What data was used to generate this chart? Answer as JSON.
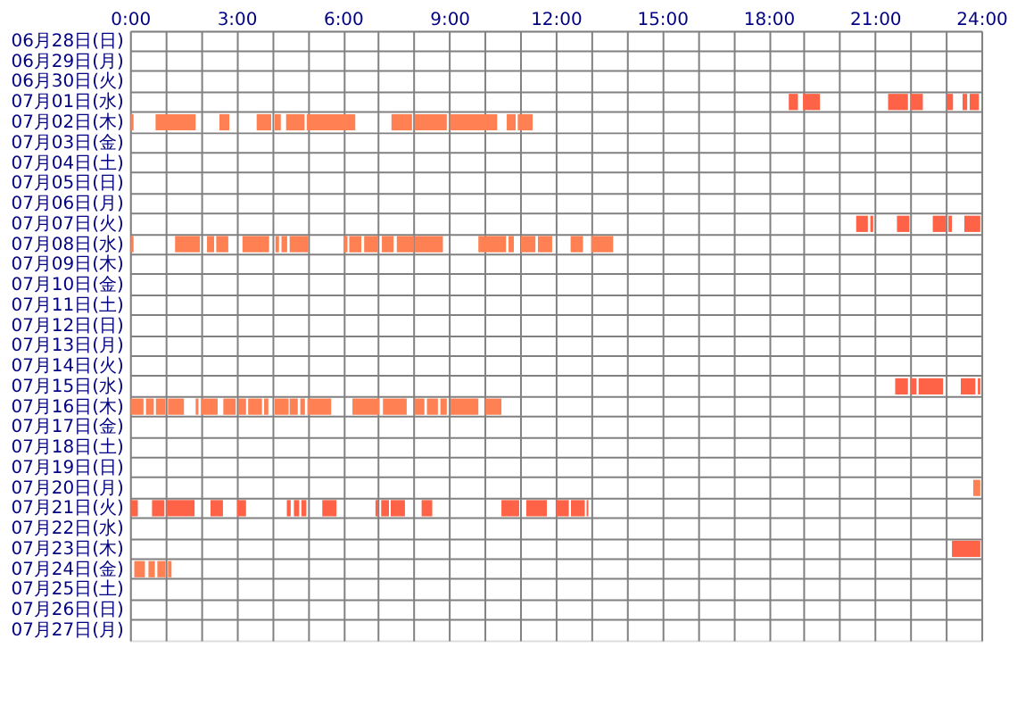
{
  "chart_data": {
    "type": "bar",
    "orientation": "horizontal",
    "grid": true,
    "categories": [
      "06月28日(日)",
      "06月29日(月)",
      "06月30日(火)",
      "07月01日(水)",
      "07月02日(木)",
      "07月03日(金)",
      "07月04日(土)",
      "07月05日(日)",
      "07月06日(月)",
      "07月07日(火)",
      "07月08日(水)",
      "07月09日(木)",
      "07月10日(金)",
      "07月11日(土)",
      "07月12日(日)",
      "07月13日(月)",
      "07月14日(火)",
      "07月15日(水)",
      "07月16日(木)",
      "07月17日(金)",
      "07月18日(土)",
      "07月19日(日)",
      "07月20日(月)",
      "07月21日(火)",
      "07月22日(水)",
      "07月23日(木)",
      "07月24日(金)",
      "07月25日(土)",
      "07月26日(日)",
      "07月27日(月)"
    ],
    "xlim": [
      0,
      24
    ],
    "xticks": [
      {
        "value": 0,
        "label": "0:00"
      },
      {
        "value": 1,
        "label": null
      },
      {
        "value": 2,
        "label": null
      },
      {
        "value": 3,
        "label": "3:00"
      },
      {
        "value": 4,
        "label": null
      },
      {
        "value": 5,
        "label": null
      },
      {
        "value": 6,
        "label": "6:00"
      },
      {
        "value": 7,
        "label": null
      },
      {
        "value": 8,
        "label": null
      },
      {
        "value": 9,
        "label": "9:00"
      },
      {
        "value": 10,
        "label": null
      },
      {
        "value": 11,
        "label": null
      },
      {
        "value": 12,
        "label": "12:00"
      },
      {
        "value": 13,
        "label": null
      },
      {
        "value": 14,
        "label": null
      },
      {
        "value": 15,
        "label": "15:00"
      },
      {
        "value": 16,
        "label": null
      },
      {
        "value": 17,
        "label": null
      },
      {
        "value": 18,
        "label": "18:00"
      },
      {
        "value": 19,
        "label": null
      },
      {
        "value": 20,
        "label": null
      },
      {
        "value": 21,
        "label": "21:00"
      },
      {
        "value": 22,
        "label": null
      },
      {
        "value": 23,
        "label": null
      },
      {
        "value": 24,
        "label": "24:00"
      }
    ],
    "series": [
      {
        "base": [
          null,
          null,
          null,
          18.57,
          0.02,
          null,
          null,
          null,
          null,
          20.47,
          0.02,
          null,
          null,
          null,
          null,
          null,
          null,
          21.57,
          0.02,
          null,
          null,
          null,
          23.77,
          0.02,
          null,
          23.17,
          0.12,
          null,
          null,
          null
        ],
        "values": [
          null,
          null,
          null,
          0.26,
          0.08,
          null,
          null,
          null,
          null,
          0.33,
          0.08,
          null,
          null,
          null,
          null,
          null,
          null,
          0.36,
          0.36,
          null,
          null,
          null,
          0.2,
          0.2,
          null,
          0.8,
          0.3,
          null,
          null,
          null
        ],
        "colors": [
          null,
          null,
          null,
          "#ff6347",
          "#ff8052",
          null,
          null,
          null,
          null,
          "#ff6347",
          "#ff8052",
          null,
          null,
          null,
          null,
          null,
          null,
          "#ff6347",
          "#ff8052",
          null,
          null,
          null,
          "#ff8052",
          "#ff6347",
          null,
          "#ff6347",
          "#ff8052",
          null,
          null,
          null
        ]
      },
      {
        "base": [
          null,
          null,
          null,
          18.97,
          0.72,
          null,
          null,
          null,
          null,
          20.87,
          1.27,
          null,
          null,
          null,
          null,
          null,
          null,
          22.0,
          0.45,
          null,
          null,
          null,
          null,
          0.62,
          null,
          null,
          0.52,
          null,
          null,
          null
        ],
        "values": [
          null,
          null,
          null,
          0.48,
          1.13,
          null,
          null,
          null,
          null,
          0.08,
          0.7,
          null,
          null,
          null,
          null,
          null,
          null,
          0.17,
          0.22,
          null,
          null,
          null,
          null,
          0.35,
          null,
          null,
          0.18,
          null,
          null,
          null
        ],
        "colors": [
          null,
          null,
          null,
          "#ff6347",
          "#ff8052",
          null,
          null,
          null,
          null,
          "#ff6347",
          "#ff8052",
          null,
          null,
          null,
          null,
          null,
          null,
          "#ff6347",
          "#ff8052",
          null,
          null,
          null,
          null,
          "#ff6347",
          null,
          null,
          "#ff8052",
          null,
          null,
          null
        ]
      },
      {
        "base": [
          null,
          null,
          null,
          21.37,
          2.52,
          null,
          null,
          null,
          null,
          21.62,
          2.17,
          null,
          null,
          null,
          null,
          null,
          null,
          22.23,
          0.73,
          null,
          null,
          null,
          null,
          1.03,
          null,
          null,
          0.77,
          null,
          null,
          null
        ],
        "values": [
          null,
          null,
          null,
          0.56,
          0.28,
          null,
          null,
          null,
          null,
          0.35,
          0.2,
          null,
          null,
          null,
          null,
          null,
          null,
          0.69,
          0.27,
          null,
          null,
          null,
          null,
          0.79,
          null,
          null,
          0.23,
          null,
          null,
          null
        ],
        "colors": [
          null,
          null,
          null,
          "#ff6347",
          "#ff8052",
          null,
          null,
          null,
          null,
          "#ff6347",
          "#ff8052",
          null,
          null,
          null,
          null,
          null,
          null,
          "#ff6347",
          "#ff8052",
          null,
          null,
          null,
          null,
          "#ff6347",
          null,
          null,
          "#ff8052",
          null,
          null,
          null
        ]
      },
      {
        "base": [
          null,
          null,
          null,
          22.0,
          3.57,
          null,
          null,
          null,
          null,
          22.63,
          2.43,
          null,
          null,
          null,
          null,
          null,
          null,
          23.42,
          1.07,
          null,
          null,
          null,
          null,
          2.27,
          null,
          null,
          1.07,
          null,
          null,
          null
        ],
        "values": [
          null,
          null,
          null,
          0.35,
          0.41,
          null,
          null,
          null,
          null,
          0.37,
          0.34,
          null,
          null,
          null,
          null,
          null,
          null,
          0.41,
          0.45,
          null,
          null,
          null,
          null,
          0.35,
          null,
          null,
          0.1,
          null,
          null,
          null
        ],
        "colors": [
          null,
          null,
          null,
          "#ff6347",
          "#ff8052",
          null,
          null,
          null,
          null,
          "#ff6347",
          "#ff8052",
          null,
          null,
          null,
          null,
          null,
          null,
          "#ff6347",
          "#ff8052",
          null,
          null,
          null,
          null,
          "#ff6347",
          null,
          null,
          "#ff8052",
          null,
          null,
          null
        ]
      },
      {
        "base": [
          null,
          null,
          null,
          23.02,
          4.08,
          null,
          null,
          null,
          null,
          23.07,
          3.17,
          null,
          null,
          null,
          null,
          null,
          null,
          23.9,
          1.85,
          null,
          null,
          null,
          null,
          3.02,
          null,
          null,
          null,
          null,
          null,
          null
        ],
        "values": [
          null,
          null,
          null,
          0.18,
          0.17,
          null,
          null,
          null,
          null,
          0.1,
          0.75,
          null,
          null,
          null,
          null,
          null,
          null,
          0.07,
          0.08,
          null,
          null,
          null,
          null,
          0.25,
          null,
          null,
          null,
          null,
          null,
          null
        ],
        "colors": [
          null,
          null,
          null,
          "#ff6347",
          "#ff8052",
          null,
          null,
          null,
          null,
          "#ff6347",
          "#ff8052",
          null,
          null,
          null,
          null,
          null,
          null,
          "#ff6347",
          "#ff8052",
          null,
          null,
          null,
          null,
          "#ff6347",
          null,
          null,
          null,
          null,
          null,
          null
        ]
      },
      {
        "base": [
          null,
          null,
          null,
          23.47,
          4.4,
          null,
          null,
          null,
          null,
          23.52,
          4.1,
          null,
          null,
          null,
          null,
          null,
          null,
          null,
          2.0,
          null,
          null,
          null,
          null,
          4.42,
          null,
          null,
          null,
          null,
          null,
          null
        ],
        "values": [
          null,
          null,
          null,
          0.13,
          0.52,
          null,
          null,
          null,
          null,
          0.45,
          0.1,
          null,
          null,
          null,
          null,
          null,
          null,
          null,
          0.47,
          null,
          null,
          null,
          null,
          0.11,
          null,
          null,
          null,
          null,
          null,
          null
        ],
        "colors": [
          null,
          null,
          null,
          "#ff6347",
          "#ff8052",
          null,
          null,
          null,
          null,
          "#ff6347",
          "#ff8052",
          null,
          null,
          null,
          null,
          null,
          null,
          null,
          "#ff8052",
          null,
          null,
          null,
          null,
          "#ff6347",
          null,
          null,
          null,
          null,
          null,
          null
        ]
      },
      {
        "base": [
          null,
          null,
          null,
          23.67,
          4.98,
          null,
          null,
          null,
          null,
          null,
          4.27,
          null,
          null,
          null,
          null,
          null,
          null,
          null,
          2.63,
          null,
          null,
          null,
          null,
          4.62,
          null,
          null,
          null,
          null,
          null,
          null
        ],
        "values": [
          null,
          null,
          null,
          0.26,
          1.37,
          null,
          null,
          null,
          null,
          null,
          0.16,
          null,
          null,
          null,
          null,
          null,
          null,
          null,
          0.35,
          null,
          null,
          null,
          null,
          0.15,
          null,
          null,
          null,
          null,
          null,
          null
        ],
        "colors": [
          null,
          null,
          null,
          "#ff6347",
          "#ff8052",
          null,
          null,
          null,
          null,
          null,
          "#ff8052",
          null,
          null,
          null,
          null,
          null,
          null,
          null,
          "#ff8052",
          null,
          null,
          null,
          null,
          "#ff6347",
          null,
          null,
          null,
          null,
          null,
          null
        ]
      },
      {
        "base": [
          null,
          null,
          null,
          null,
          7.37,
          null,
          null,
          null,
          null,
          null,
          4.5,
          null,
          null,
          null,
          null,
          null,
          null,
          null,
          3.05,
          null,
          null,
          null,
          null,
          4.83,
          null,
          null,
          null,
          null,
          null,
          null
        ],
        "values": [
          null,
          null,
          null,
          null,
          0.58,
          null,
          null,
          null,
          null,
          null,
          0.52,
          null,
          null,
          null,
          null,
          null,
          null,
          null,
          0.22,
          null,
          null,
          null,
          null,
          0.14,
          null,
          null,
          null,
          null,
          null,
          null
        ],
        "colors": [
          null,
          null,
          null,
          null,
          "#ff8052",
          null,
          null,
          null,
          null,
          null,
          "#ff8052",
          null,
          null,
          null,
          null,
          null,
          null,
          null,
          "#ff8052",
          null,
          null,
          null,
          null,
          "#ff6347",
          null,
          null,
          null,
          null,
          null,
          null
        ]
      },
      {
        "base": [
          null,
          null,
          null,
          null,
          8.02,
          null,
          null,
          null,
          null,
          null,
          6.02,
          null,
          null,
          null,
          null,
          null,
          null,
          null,
          3.33,
          null,
          null,
          null,
          null,
          5.42,
          null,
          null,
          null,
          null,
          null,
          null
        ],
        "values": [
          null,
          null,
          null,
          null,
          0.91,
          null,
          null,
          null,
          null,
          null,
          0.11,
          null,
          null,
          null,
          null,
          null,
          null,
          null,
          0.39,
          null,
          null,
          null,
          null,
          0.4,
          null,
          null,
          null,
          null,
          null,
          null
        ],
        "colors": [
          null,
          null,
          null,
          null,
          "#ff8052",
          null,
          null,
          null,
          null,
          null,
          "#ff8052",
          null,
          null,
          null,
          null,
          null,
          null,
          null,
          "#ff8052",
          null,
          null,
          null,
          null,
          "#ff6347",
          null,
          null,
          null,
          null,
          null,
          null
        ]
      },
      {
        "base": [
          null,
          null,
          null,
          null,
          9.02,
          null,
          null,
          null,
          null,
          null,
          6.18,
          null,
          null,
          null,
          null,
          null,
          null,
          null,
          3.78,
          null,
          null,
          null,
          null,
          6.92,
          null,
          null,
          null,
          null,
          null,
          null
        ],
        "values": [
          null,
          null,
          null,
          null,
          1.33,
          null,
          null,
          null,
          null,
          null,
          0.34,
          null,
          null,
          null,
          null,
          null,
          null,
          null,
          0.12,
          null,
          null,
          null,
          null,
          0.08,
          null,
          null,
          null,
          null,
          null,
          null
        ],
        "colors": [
          null,
          null,
          null,
          null,
          "#ff8052",
          null,
          null,
          null,
          null,
          null,
          "#ff8052",
          null,
          null,
          null,
          null,
          null,
          null,
          null,
          "#ff8052",
          null,
          null,
          null,
          null,
          "#ff6347",
          null,
          null,
          null,
          null,
          null,
          null
        ]
      },
      {
        "base": [
          null,
          null,
          null,
          null,
          10.62,
          null,
          null,
          null,
          null,
          null,
          6.6,
          null,
          null,
          null,
          null,
          null,
          null,
          null,
          4.08,
          null,
          null,
          null,
          null,
          7.08,
          null,
          null,
          null,
          null,
          null,
          null
        ],
        "values": [
          null,
          null,
          null,
          null,
          0.25,
          null,
          null,
          null,
          null,
          null,
          0.38,
          null,
          null,
          null,
          null,
          null,
          null,
          null,
          0.39,
          null,
          null,
          null,
          null,
          0.22,
          null,
          null,
          null,
          null,
          null,
          null
        ],
        "colors": [
          null,
          null,
          null,
          null,
          "#ff8052",
          null,
          null,
          null,
          null,
          null,
          "#ff8052",
          null,
          null,
          null,
          null,
          null,
          null,
          null,
          "#ff8052",
          null,
          null,
          null,
          null,
          "#ff6347",
          null,
          null,
          null,
          null,
          null,
          null
        ]
      },
      {
        "base": [
          null,
          null,
          null,
          null,
          10.93,
          null,
          null,
          null,
          null,
          null,
          7.1,
          null,
          null,
          null,
          null,
          null,
          null,
          null,
          4.5,
          null,
          null,
          null,
          null,
          7.35,
          null,
          null,
          null,
          null,
          null,
          null
        ],
        "values": [
          null,
          null,
          null,
          null,
          0.42,
          null,
          null,
          null,
          null,
          null,
          0.33,
          null,
          null,
          null,
          null,
          null,
          null,
          null,
          0.23,
          null,
          null,
          null,
          null,
          0.4,
          null,
          null,
          null,
          null,
          null,
          null
        ],
        "colors": [
          null,
          null,
          null,
          null,
          "#ff8052",
          null,
          null,
          null,
          null,
          null,
          "#ff8052",
          null,
          null,
          null,
          null,
          null,
          null,
          null,
          "#ff8052",
          null,
          null,
          null,
          null,
          "#ff6347",
          null,
          null,
          null,
          null,
          null,
          null
        ]
      },
      {
        "base": [
          null,
          null,
          null,
          null,
          null,
          null,
          null,
          null,
          null,
          null,
          7.52,
          null,
          null,
          null,
          null,
          null,
          null,
          null,
          4.8,
          null,
          null,
          null,
          null,
          8.22,
          null,
          null,
          null,
          null,
          null,
          null
        ],
        "values": [
          null,
          null,
          null,
          null,
          null,
          null,
          null,
          null,
          null,
          null,
          0.48,
          null,
          null,
          null,
          null,
          null,
          null,
          null,
          0.13,
          null,
          null,
          null,
          null,
          0.3,
          null,
          null,
          null,
          null,
          null,
          null
        ],
        "colors": [
          null,
          null,
          null,
          null,
          null,
          null,
          null,
          null,
          null,
          null,
          "#ff8052",
          null,
          null,
          null,
          null,
          null,
          null,
          null,
          "#ff8052",
          null,
          null,
          null,
          null,
          "#ff6347",
          null,
          null,
          null,
          null,
          null,
          null
        ]
      },
      {
        "base": [
          null,
          null,
          null,
          null,
          null,
          null,
          null,
          null,
          null,
          null,
          8.02,
          null,
          null,
          null,
          null,
          null,
          null,
          null,
          5.0,
          null,
          null,
          null,
          null,
          10.47,
          null,
          null,
          null,
          null,
          null,
          null
        ],
        "values": [
          null,
          null,
          null,
          null,
          null,
          null,
          null,
          null,
          null,
          null,
          0.8,
          null,
          null,
          null,
          null,
          null,
          null,
          null,
          0.67,
          null,
          null,
          null,
          null,
          0.5,
          null,
          null,
          null,
          null,
          null,
          null
        ],
        "colors": [
          null,
          null,
          null,
          null,
          null,
          null,
          null,
          null,
          null,
          null,
          "#ff8052",
          null,
          null,
          null,
          null,
          null,
          null,
          null,
          "#ff8052",
          null,
          null,
          null,
          null,
          "#ff6347",
          null,
          null,
          null,
          null,
          null,
          null
        ]
      },
      {
        "base": [
          null,
          null,
          null,
          null,
          null,
          null,
          null,
          null,
          null,
          null,
          9.82,
          null,
          null,
          null,
          null,
          null,
          null,
          null,
          6.27,
          null,
          null,
          null,
          null,
          11.17,
          null,
          null,
          null,
          null,
          null,
          null
        ],
        "values": [
          null,
          null,
          null,
          null,
          null,
          null,
          null,
          null,
          null,
          null,
          0.78,
          null,
          null,
          null,
          null,
          null,
          null,
          null,
          0.76,
          null,
          null,
          null,
          null,
          0.58,
          null,
          null,
          null,
          null,
          null,
          null
        ],
        "colors": [
          null,
          null,
          null,
          null,
          null,
          null,
          null,
          null,
          null,
          null,
          "#ff8052",
          null,
          null,
          null,
          null,
          null,
          null,
          null,
          "#ff8052",
          null,
          null,
          null,
          null,
          "#ff6347",
          null,
          null,
          null,
          null,
          null,
          null
        ]
      },
      {
        "base": [
          null,
          null,
          null,
          null,
          null,
          null,
          null,
          null,
          null,
          null,
          10.67,
          null,
          null,
          null,
          null,
          null,
          null,
          null,
          7.13,
          null,
          null,
          null,
          null,
          12.02,
          null,
          null,
          null,
          null,
          null,
          null
        ],
        "values": [
          null,
          null,
          null,
          null,
          null,
          null,
          null,
          null,
          null,
          null,
          0.15,
          null,
          null,
          null,
          null,
          null,
          null,
          null,
          0.67,
          null,
          null,
          null,
          null,
          0.35,
          null,
          null,
          null,
          null,
          null,
          null
        ],
        "colors": [
          null,
          null,
          null,
          null,
          null,
          null,
          null,
          null,
          null,
          null,
          "#ff8052",
          null,
          null,
          null,
          null,
          null,
          null,
          null,
          "#ff8052",
          null,
          null,
          null,
          null,
          "#ff6347",
          null,
          null,
          null,
          null,
          null,
          null
        ]
      },
      {
        "base": [
          null,
          null,
          null,
          null,
          null,
          null,
          null,
          null,
          null,
          null,
          11.02,
          null,
          null,
          null,
          null,
          null,
          null,
          null,
          8.02,
          null,
          null,
          null,
          null,
          12.43,
          null,
          null,
          null,
          null,
          null,
          null
        ],
        "values": [
          null,
          null,
          null,
          null,
          null,
          null,
          null,
          null,
          null,
          null,
          0.41,
          null,
          null,
          null,
          null,
          null,
          null,
          null,
          0.28,
          null,
          null,
          null,
          null,
          0.39,
          null,
          null,
          null,
          null,
          null,
          null
        ],
        "colors": [
          null,
          null,
          null,
          null,
          null,
          null,
          null,
          null,
          null,
          null,
          "#ff8052",
          null,
          null,
          null,
          null,
          null,
          null,
          null,
          "#ff8052",
          null,
          null,
          null,
          null,
          "#ff6347",
          null,
          null,
          null,
          null,
          null,
          null
        ]
      },
      {
        "base": [
          null,
          null,
          null,
          null,
          null,
          null,
          null,
          null,
          null,
          null,
          11.5,
          null,
          null,
          null,
          null,
          null,
          null,
          null,
          8.37,
          null,
          null,
          null,
          null,
          12.87,
          null,
          null,
          null,
          null,
          null,
          null
        ],
        "values": [
          null,
          null,
          null,
          null,
          null,
          null,
          null,
          null,
          null,
          null,
          0.4,
          null,
          null,
          null,
          null,
          null,
          null,
          null,
          0.31,
          null,
          null,
          null,
          null,
          0.05,
          null,
          null,
          null,
          null,
          null,
          null
        ],
        "colors": [
          null,
          null,
          null,
          null,
          null,
          null,
          null,
          null,
          null,
          null,
          "#ff8052",
          null,
          null,
          null,
          null,
          null,
          null,
          null,
          "#ff8052",
          null,
          null,
          null,
          null,
          "#ff6347",
          null,
          null,
          null,
          null,
          null,
          null
        ]
      },
      {
        "base": [
          null,
          null,
          null,
          null,
          null,
          null,
          null,
          null,
          null,
          null,
          12.42,
          null,
          null,
          null,
          null,
          null,
          null,
          null,
          8.75,
          null,
          null,
          null,
          null,
          null,
          null,
          null,
          null,
          null,
          null,
          null
        ],
        "values": [
          null,
          null,
          null,
          null,
          null,
          null,
          null,
          null,
          null,
          null,
          0.35,
          null,
          null,
          null,
          null,
          null,
          null,
          null,
          0.18,
          null,
          null,
          null,
          null,
          null,
          null,
          null,
          null,
          null,
          null,
          null
        ],
        "colors": [
          null,
          null,
          null,
          null,
          null,
          null,
          null,
          null,
          null,
          null,
          "#ff8052",
          null,
          null,
          null,
          null,
          null,
          null,
          null,
          "#ff8052",
          null,
          null,
          null,
          null,
          null,
          null,
          null,
          null,
          null,
          null,
          null
        ]
      },
      {
        "base": [
          null,
          null,
          null,
          null,
          null,
          null,
          null,
          null,
          null,
          null,
          13.0,
          null,
          null,
          null,
          null,
          null,
          null,
          null,
          9.03,
          null,
          null,
          null,
          null,
          null,
          null,
          null,
          null,
          null,
          null,
          null
        ],
        "values": [
          null,
          null,
          null,
          null,
          null,
          null,
          null,
          null,
          null,
          null,
          0.62,
          null,
          null,
          null,
          null,
          null,
          null,
          null,
          0.79,
          null,
          null,
          null,
          null,
          null,
          null,
          null,
          null,
          null,
          null,
          null
        ],
        "colors": [
          null,
          null,
          null,
          null,
          null,
          null,
          null,
          null,
          null,
          null,
          "#ff8052",
          null,
          null,
          null,
          null,
          null,
          null,
          null,
          "#ff8052",
          null,
          null,
          null,
          null,
          null,
          null,
          null,
          null,
          null,
          null,
          null
        ]
      },
      {
        "base": [
          null,
          null,
          null,
          null,
          null,
          null,
          null,
          null,
          null,
          null,
          null,
          null,
          null,
          null,
          null,
          null,
          null,
          null,
          10.02,
          null,
          null,
          null,
          null,
          null,
          null,
          null,
          null,
          null,
          null,
          null
        ],
        "values": [
          null,
          null,
          null,
          null,
          null,
          null,
          null,
          null,
          null,
          null,
          null,
          null,
          null,
          null,
          null,
          null,
          null,
          null,
          0.45,
          null,
          null,
          null,
          null,
          null,
          null,
          null,
          null,
          null,
          null,
          null
        ],
        "color": "#ff8052"
      }
    ]
  }
}
